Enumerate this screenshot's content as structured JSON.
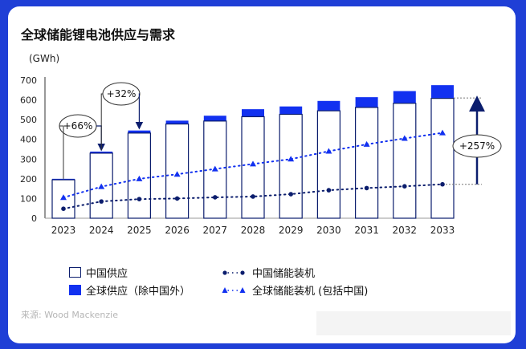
{
  "title": "全球储能锂电池供应与需求",
  "unit": "(GWh)",
  "source": "来源: Wood Mackenzie",
  "legend": {
    "china_supply": "中国供应",
    "global_supply_ex_china": "全球供应（除中国外）",
    "china_storage": "中国储能装机",
    "global_storage": "全球储能装机 (包括中国)"
  },
  "callouts": {
    "c2024": "+66%",
    "c2025": "+32%",
    "c2033": "+257%"
  },
  "colors": {
    "background": "#1f3fd6",
    "bar_outline": "#0b1d6d",
    "global_blue": "#1231f0",
    "dot_line": "#0b1d6d"
  },
  "chart_data": {
    "type": "bar",
    "categories": [
      "2023",
      "2024",
      "2025",
      "2026",
      "2027",
      "2028",
      "2029",
      "2030",
      "2031",
      "2032",
      "2033"
    ],
    "yticks": [
      "0",
      "100",
      "200",
      "300",
      "400",
      "500",
      "600",
      "700"
    ],
    "ylim": [
      0,
      700
    ],
    "series": [
      {
        "name": "中国供应",
        "values": [
          195,
          330,
          432,
          478,
          493,
          515,
          527,
          545,
          562,
          583,
          608
        ]
      },
      {
        "name": "全球供应（除中国外）",
        "values": [
          5,
          8,
          13,
          17,
          27,
          38,
          40,
          50,
          52,
          62,
          67
        ]
      },
      {
        "name": "中国储能装机",
        "values": [
          48,
          85,
          97,
          100,
          106,
          110,
          122,
          142,
          153,
          162,
          172
        ]
      },
      {
        "name": "全球储能装机 (包括中国)",
        "values": [
          105,
          160,
          200,
          223,
          250,
          275,
          300,
          340,
          375,
          405,
          433
        ]
      }
    ]
  }
}
